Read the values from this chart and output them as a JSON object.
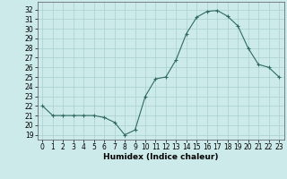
{
  "x": [
    0,
    1,
    2,
    3,
    4,
    5,
    6,
    7,
    8,
    9,
    10,
    11,
    12,
    13,
    14,
    15,
    16,
    17,
    18,
    19,
    20,
    21,
    22,
    23
  ],
  "y": [
    22,
    21,
    21,
    21,
    21,
    21,
    20.8,
    20.3,
    19,
    19.5,
    23,
    24.8,
    25,
    26.8,
    29.5,
    31.2,
    31.8,
    31.9,
    31.3,
    30.3,
    28,
    26.3,
    26,
    25
  ],
  "line_color": "#2e6b5e",
  "marker": "+",
  "marker_size": 3,
  "marker_lw": 0.8,
  "line_width": 0.8,
  "bg_color": "#cdeaea",
  "grid_color": "#a8d0cc",
  "xlabel": "Humidex (Indice chaleur)",
  "ylabel_ticks": [
    19,
    20,
    21,
    22,
    23,
    24,
    25,
    26,
    27,
    28,
    29,
    30,
    31,
    32
  ],
  "ylim": [
    18.5,
    32.8
  ],
  "xlim": [
    -0.5,
    23.5
  ],
  "tick_fontsize": 5.5,
  "xlabel_fontsize": 6.5
}
